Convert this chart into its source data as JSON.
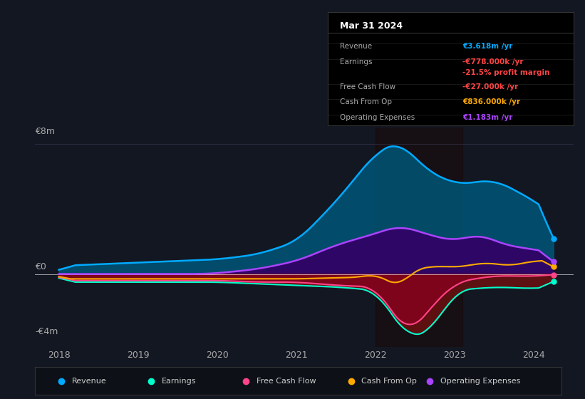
{
  "bg_color": "#131722",
  "plot_bg_color": "#131722",
  "panel_bg_color": "#0d1117",
  "title_date": "Mar 31 2024",
  "info_box": {
    "Revenue": {
      "value": "€3.618m /yr",
      "color": "#00aaff"
    },
    "Earnings": {
      "value": "-€778.000k /yr",
      "color": "#ff4444"
    },
    "profit_margin": {
      "value": "-21.5% profit margin",
      "color": "#ff4444"
    },
    "Free Cash Flow": {
      "value": "-€27.000k /yr",
      "color": "#ff4444"
    },
    "Cash From Op": {
      "value": "€836.000k /yr",
      "color": "#ffaa00"
    },
    "Operating Expenses": {
      "value": "€1.183m /yr",
      "color": "#aa44ff"
    }
  },
  "ylim": [
    -4.5,
    9.0
  ],
  "yticks": [
    -4,
    0,
    8
  ],
  "ytick_labels": [
    "-€4m",
    "€0",
    "€8m"
  ],
  "xlim": [
    2017.7,
    2024.5
  ],
  "xticks": [
    2018,
    2019,
    2020,
    2021,
    2022,
    2023,
    2024
  ],
  "highlight_x_start": 2022.0,
  "highlight_x_end": 2023.1,
  "highlight_color": "#1a0000",
  "colors": {
    "revenue_line": "#00aaff",
    "revenue_fill": "#005577",
    "earnings_line": "#00ffcc",
    "earnings_fill": "#006644",
    "free_cash_flow_line": "#ff4488",
    "free_cash_flow_fill": "#660022",
    "cash_from_op_line": "#ffaa00",
    "operating_expenses_line": "#aa44ff",
    "operating_expenses_fill": "#330066",
    "zero_line": "#ffffff"
  },
  "legend": [
    {
      "label": "Revenue",
      "color": "#00aaff",
      "marker": "o"
    },
    {
      "label": "Earnings",
      "color": "#00ffcc",
      "marker": "o"
    },
    {
      "label": "Free Cash Flow",
      "color": "#ff4488",
      "marker": "o"
    },
    {
      "label": "Cash From Op",
      "color": "#ffaa00",
      "marker": "o"
    },
    {
      "label": "Operating Expenses",
      "color": "#aa44ff",
      "marker": "o"
    }
  ]
}
